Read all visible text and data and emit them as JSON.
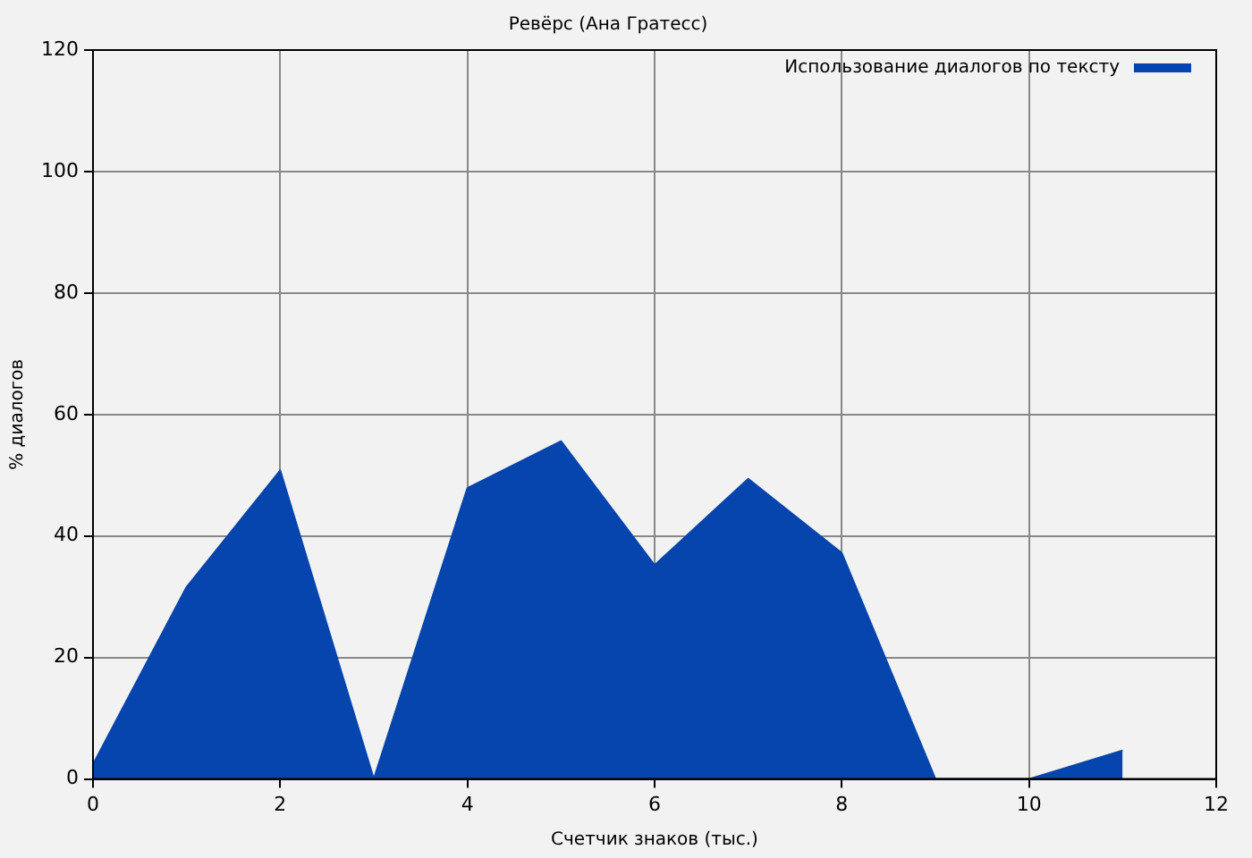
{
  "chart_data": {
    "type": "area",
    "title": "Ревёрс (Ана Гратесс)",
    "xlabel": "Счетчик знаков (тыс.)",
    "ylabel": "% диалогов",
    "x": [
      0,
      1,
      2,
      3,
      4,
      5,
      6,
      7,
      8,
      9,
      10,
      11
    ],
    "series": [
      {
        "name": "Использование диалогов по тексту",
        "color": "#0645ad",
        "values": [
          2.4,
          31.6,
          50.8,
          0,
          47.9,
          55.6,
          35.2,
          49.4,
          37.2,
          0,
          0,
          4.7
        ]
      }
    ],
    "xlim": [
      0,
      12
    ],
    "xticks": [
      0,
      2,
      4,
      6,
      8,
      10,
      12
    ],
    "ylim": [
      0,
      120
    ],
    "yticks": [
      0,
      20,
      40,
      60,
      80,
      100,
      120
    ],
    "grid": true,
    "legend": "top right",
    "marker": "none",
    "line_style": "solid"
  }
}
